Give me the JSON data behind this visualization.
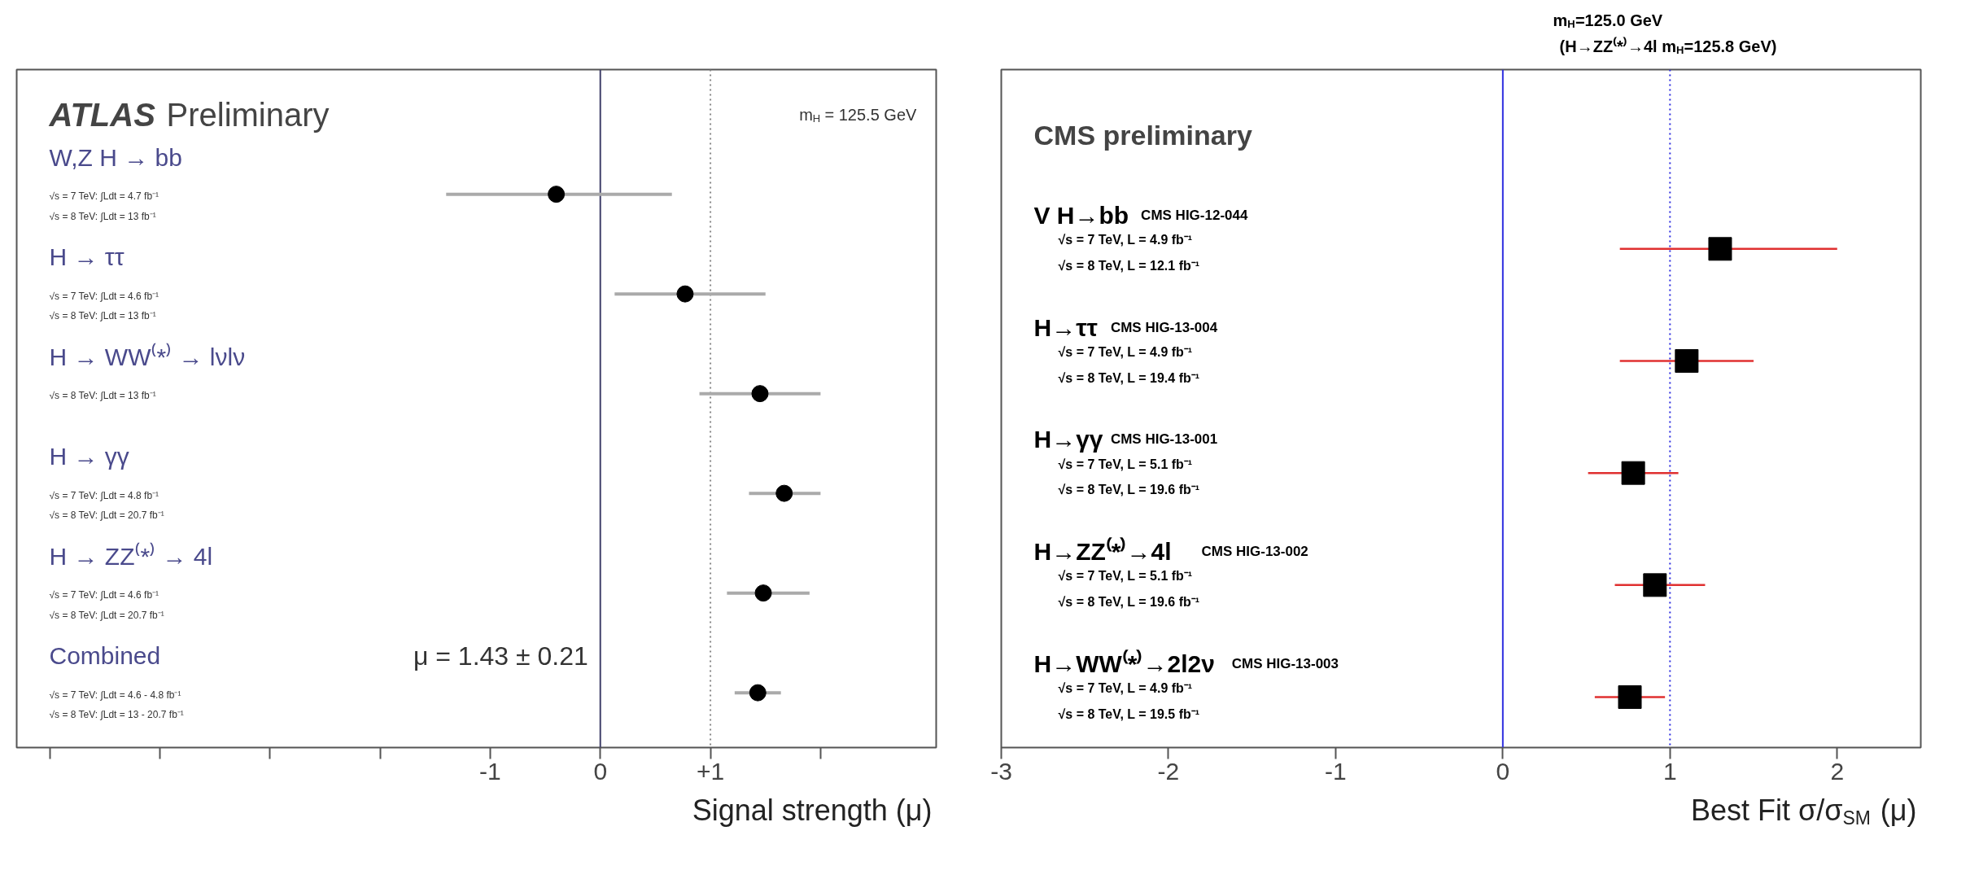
{
  "chart_data": [
    {
      "type": "scatter",
      "orientation": "horizontal",
      "title": "ATLAS Preliminary",
      "xlabel": "Signal strength (μ)",
      "marker": "circle",
      "grid": false,
      "categories": [
        "W,Z H → bb\n√s = 7 TeV: ∫Ldt = 4.7 fb⁻¹\n√s = 8 TeV: ∫Ldt = 13 fb⁻¹",
        "H → ττ\n√s = 7 TeV: ∫Ldt = 4.6 fb⁻¹\n√s = 8 TeV: ∫Ldt = 13 fb⁻¹",
        "H → WW⁽*⁾ → lνlν\n√s = 8 TeV: ∫Ldt = 13 fb⁻¹",
        "H → γγ\n√s = 7 TeV: ∫Ldt = 4.8 fb⁻¹\n√s = 8 TeV: ∫Ldt = 20.7 fb⁻¹",
        "H → ZZ⁽*⁾ → 4l\n√s = 7 TeV: ∫Ldt = 4.6 fb⁻¹\n√s = 8 TeV: ∫Ldt = 20.7 fb⁻¹",
        "Combined\n√s = 7 TeV: ∫Ldt = 4.6 - 4.8 fb⁻¹\n√s = 8 TeV: ∫Ldt = 13 - 20.7 fb⁻¹"
      ],
      "series": [
        {
          "color": "#000000",
          "values": [
            -0.4,
            0.77,
            1.45,
            1.67,
            1.48,
            1.43
          ],
          "errors": [
            [
              -1.4,
              0.65
            ],
            [
              0.13,
              1.5
            ],
            [
              0.9,
              2.0
            ],
            [
              1.35,
              2.0
            ],
            [
              1.15,
              1.9
            ],
            [
              1.22,
              1.64
            ]
          ]
        }
      ],
      "xlim": [
        -5.3,
        3.05
      ],
      "xticks": [
        {
          "value": -5,
          "label": null
        },
        {
          "value": -4,
          "label": null
        },
        {
          "value": -3,
          "label": null
        },
        {
          "value": -2,
          "label": null
        },
        -1,
        0,
        {
          "value": 1,
          "label": "+1"
        },
        {
          "value": 2,
          "label": null
        }
      ],
      "ref_lines": [
        {
          "axis": "x",
          "value": 0,
          "color": "#40406a",
          "line_style": "solid"
        },
        {
          "axis": "x",
          "value": 1,
          "color": "#888888",
          "line_style": "dotted"
        }
      ],
      "annotations": [
        "m$_{H}$ = 125.5 GeV",
        "μ = 1.43 ± 0.21"
      ]
    },
    {
      "type": "scatter",
      "orientation": "horizontal",
      "title": "CMS preliminary",
      "xlabel": "Best Fit σ/σ$_{SM}$ (μ)",
      "marker": "square",
      "grid": false,
      "categories": [
        "V H→bb  CMS HIG-12-044\n√s = 7 TeV, L = 4.9 fb⁻¹\n√s = 8 TeV, L = 12.1 fb⁻¹",
        "H→ττ  CMS HIG-13-004\n√s = 7 TeV, L = 4.9 fb⁻¹\n√s = 8 TeV, L = 19.4 fb⁻¹",
        "H→γγ  CMS HIG-13-001\n√s = 7 TeV, L = 5.1 fb⁻¹\n√s = 8 TeV, L = 19.6 fb⁻¹",
        "H→ZZ⁽*⁾→4l  CMS HIG-13-002\n√s = 7 TeV, L = 5.1 fb⁻¹\n√s = 8 TeV, L = 19.6 fb⁻¹",
        "H→WW⁽*⁾→2l2ν  CMS HIG-13-003\n√s = 7 TeV, L = 4.9 fb⁻¹\n√s = 8 TeV, L = 19.5 fb⁻¹"
      ],
      "series": [
        {
          "color": "#000000",
          "values": [
            1.3,
            1.1,
            0.78,
            0.91,
            0.76
          ],
          "errors": [
            [
              0.7,
              2.0
            ],
            [
              0.7,
              1.5
            ],
            [
              0.51,
              1.05
            ],
            [
              0.67,
              1.21
            ],
            [
              0.55,
              0.97
            ]
          ]
        }
      ],
      "xlim": [
        -3,
        2.5
      ],
      "xticks": [
        -3,
        -2,
        -1,
        0,
        1,
        2
      ],
      "ref_lines": [
        {
          "axis": "x",
          "value": 0,
          "color": "#3030e0",
          "line_style": "solid"
        },
        {
          "axis": "x",
          "value": 1,
          "color": "#3030e0",
          "line_style": "dotted"
        }
      ],
      "annotations": [
        "m$_{H}$=125.0 GeV",
        "(H→ZZ⁽*⁾→4l m$_{H}$=125.8 GeV)"
      ]
    }
  ]
}
